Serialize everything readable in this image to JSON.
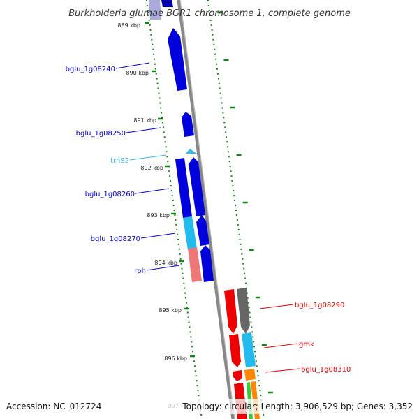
{
  "title": "Burkholderia glumae BGR1 chromosome 1, complete genome",
  "accession": "Accession: NC_012724",
  "topology": "Topology: circular; Length: 3,906,529 bp; Genes: 3,352",
  "scale_ticks": [
    {
      "label": "889 kbp"
    },
    {
      "label": "890 kbp"
    },
    {
      "label": "891 kbp"
    },
    {
      "label": "892 kbp"
    },
    {
      "label": "893 kbp"
    },
    {
      "label": "894 kbp"
    },
    {
      "label": "895 kbp"
    },
    {
      "label": "896 kbp"
    },
    {
      "label": "897"
    }
  ],
  "gene_labels": {
    "bglu_1g08240": "bglu_1g08240",
    "bglu_1g08250": "bglu_1g08250",
    "trnS2": "trnS2",
    "bglu_1g08260": "bglu_1g08260",
    "bglu_1g08270": "bglu_1g08270",
    "rph": "rph",
    "bglu_1g08290": "bglu_1g08290",
    "gmk": "gmk",
    "bglu_1g08310": "bglu_1g08310"
  },
  "colors": {
    "forward_gene": "#0000dd",
    "reverse_gene": "#ee0000",
    "trna": "#33bbee",
    "cds_light": "#22bbee",
    "rph": "#ee7777",
    "gray_gene": "#666666",
    "orange_gene": "#ff8800",
    "green_gene": "#33cc33",
    "backbone": "#888888",
    "ticks": "#118811"
  }
}
